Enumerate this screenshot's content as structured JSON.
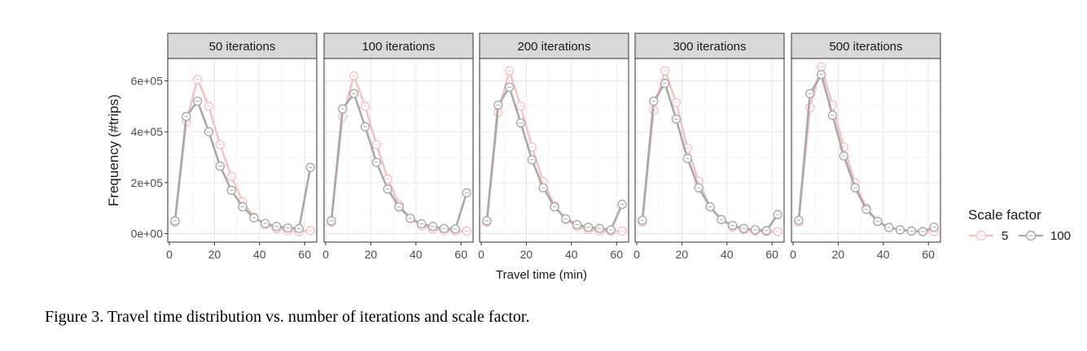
{
  "chart_data": {
    "type": "line",
    "facet_titles": [
      "50 iterations",
      "100 iterations",
      "200 iterations",
      "300 iterations",
      "500 iterations"
    ],
    "xlabel": "Travel time (min)",
    "ylabel": "Frequency (#trips)",
    "x_ticks": [
      "0",
      "20",
      "40",
      "60"
    ],
    "y_ticks": [
      "0e+00",
      "2e+05",
      "4e+05",
      "6e+05"
    ],
    "xlim": [
      0,
      63
    ],
    "ylim": [
      0,
      680000
    ],
    "grid": true,
    "legend": {
      "title": "Scale factor",
      "position": "right",
      "entries": [
        {
          "label": "5",
          "color": "#f4c2c9"
        },
        {
          "label": "100",
          "color": "#a9a9a9"
        }
      ]
    },
    "x": [
      2.5,
      7.5,
      12.5,
      17.5,
      22.5,
      27.5,
      32.5,
      37.5,
      42.5,
      47.5,
      52.5,
      57.5,
      62.5
    ],
    "panels": [
      {
        "facet": "50 iterations",
        "series": [
          {
            "name": "5",
            "values": [
              45000,
              440000,
              605000,
              500000,
              350000,
              225000,
              125000,
              65000,
              35000,
              20000,
              12000,
              8000,
              12000
            ]
          },
          {
            "name": "100",
            "values": [
              50000,
              460000,
              520000,
              400000,
              265000,
              170000,
              105000,
              62000,
              40000,
              28000,
              22000,
              20000,
              260000
            ]
          }
        ]
      },
      {
        "facet": "100 iterations",
        "series": [
          {
            "name": "5",
            "values": [
              45000,
              460000,
              620000,
              500000,
              350000,
              215000,
              115000,
              60000,
              30000,
              18000,
              12000,
              10000,
              10000
            ]
          },
          {
            "name": "100",
            "values": [
              50000,
              490000,
              550000,
              420000,
              280000,
              175000,
              105000,
              60000,
              38000,
              28000,
              20000,
              18000,
              160000
            ]
          }
        ]
      },
      {
        "facet": "200 iterations",
        "series": [
          {
            "name": "5",
            "values": [
              45000,
              475000,
              640000,
              500000,
              340000,
              205000,
              110000,
              55000,
              28000,
              16000,
              11000,
              9000,
              10000
            ]
          },
          {
            "name": "100",
            "values": [
              50000,
              505000,
              575000,
              435000,
              290000,
              180000,
              105000,
              58000,
              35000,
              25000,
              20000,
              15000,
              115000
            ]
          }
        ]
      },
      {
        "facet": "300 iterations",
        "series": [
          {
            "name": "5",
            "values": [
              45000,
              485000,
              640000,
              515000,
              335000,
              205000,
              105000,
              55000,
              26000,
              15000,
              10000,
              8000,
              8000
            ]
          },
          {
            "name": "100",
            "values": [
              52000,
              520000,
              590000,
              450000,
              295000,
              180000,
              105000,
              55000,
              32000,
              20000,
              15000,
              12000,
              75000
            ]
          }
        ]
      },
      {
        "facet": "500 iterations",
        "series": [
          {
            "name": "5",
            "values": [
              45000,
              495000,
              655000,
              505000,
              340000,
              200000,
              100000,
              48000,
              24000,
              14000,
              10000,
              8000,
              8000
            ]
          },
          {
            "name": "100",
            "values": [
              52000,
              550000,
              625000,
              465000,
              305000,
              180000,
              95000,
              48000,
              24000,
              15000,
              10000,
              8000,
              25000
            ]
          }
        ]
      }
    ]
  },
  "caption": "Figure 3. Travel time distribution vs. number of iterations and scale factor."
}
